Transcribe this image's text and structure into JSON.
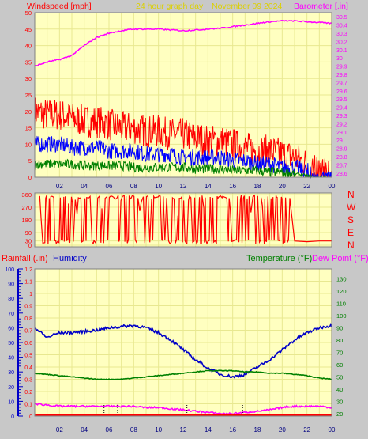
{
  "header": {
    "windspeed_label": "Windspeed [mph]",
    "graph_title": "24 hour graph day",
    "date": "November 09 2024",
    "barometer_label": "Barometer [.in]"
  },
  "middle": {
    "compass": [
      "N",
      "W",
      "S",
      "E",
      "N"
    ]
  },
  "bottom_header": {
    "rainfall_label": "Rainfall (.in)",
    "humidity_label": "Humidity",
    "temperature_label": "Temperature (°F)",
    "dewpoint_label": "Dew Point (°F)"
  },
  "colors": {
    "plot_bg": "#ffffc0",
    "grid": "#e8e890",
    "wind_gust": "#ff0000",
    "wind_avg": "#0000ff",
    "wind_low": "#008000",
    "barometer": "#ff00ff",
    "direction": "#ff0000",
    "humidity": "#0000c8",
    "temperature": "#008000",
    "dewpoint": "#ff00ff",
    "rainfall": "#0000ff"
  },
  "chart_data": [
    {
      "type": "line",
      "name": "wind-barometer",
      "x_ticks": [
        "02",
        "04",
        "06",
        "08",
        "10",
        "12",
        "14",
        "16",
        "18",
        "20",
        "22",
        "00"
      ],
      "y_left_ticks": [
        "0",
        "5",
        "10",
        "15",
        "20",
        "25",
        "30",
        "35",
        "40",
        "45",
        "50"
      ],
      "y_left_lim": [
        0,
        50
      ],
      "y_right_ticks": [
        "28.6",
        "28.7",
        "28.8",
        "28.9",
        "29",
        "29.1",
        "29.2",
        "29.3",
        "29.4",
        "29.5",
        "29.6",
        "29.7",
        "29.8",
        "29.9",
        "30",
        "30.1",
        "30.2",
        "30.3",
        "30.4",
        "30.5"
      ],
      "y_right_lim": [
        28.55,
        30.55
      ],
      "hours": [
        0,
        1,
        2,
        3,
        4,
        5,
        6,
        7,
        8,
        9,
        10,
        11,
        12,
        13,
        14,
        15,
        16,
        17,
        18,
        19,
        20,
        21,
        22,
        23,
        24
      ],
      "series": [
        {
          "values": [
            20,
            19,
            19,
            18,
            17,
            17,
            16,
            15,
            15,
            14,
            14,
            13,
            13,
            12,
            11,
            11,
            10,
            9,
            8,
            8,
            7,
            6,
            4,
            2,
            2
          ],
          "axis": "left"
        },
        {
          "values": [
            10,
            10,
            10,
            9,
            9,
            9,
            8,
            8,
            8,
            7,
            7,
            7,
            6,
            6,
            6,
            6,
            5,
            5,
            4,
            4,
            3,
            3,
            2,
            1,
            1
          ],
          "axis": "left"
        },
        {
          "values": [
            4,
            4,
            4,
            4,
            3.5,
            3.5,
            3.5,
            3.5,
            3,
            3,
            3,
            3,
            3,
            2.5,
            2.5,
            2.5,
            2,
            2,
            2,
            1.5,
            1.5,
            1,
            0.5,
            0,
            0
          ],
          "axis": "left"
        },
        {
          "values": [
            29.9,
            29.95,
            29.98,
            30.03,
            30.15,
            30.25,
            30.3,
            30.33,
            30.35,
            30.35,
            30.35,
            30.34,
            30.33,
            30.34,
            30.35,
            30.36,
            30.38,
            30.4,
            30.42,
            30.44,
            30.45,
            30.45,
            30.44,
            30.43,
            30.42
          ],
          "axis": "right"
        }
      ]
    },
    {
      "type": "line",
      "name": "wind-direction",
      "y_ticks": [
        "0",
        "30",
        "90",
        "180",
        "270",
        "360"
      ],
      "y_lim": [
        0,
        360
      ],
      "values": [
        {
          "hour": 0.5,
          "deg": 350
        },
        {
          "hour": 20.5,
          "deg": 350
        },
        {
          "hour": 21.0,
          "deg": 30
        },
        {
          "hour": 22.0,
          "deg": 25
        },
        {
          "hour": 23.0,
          "deg": 30
        },
        {
          "hour": 24.0,
          "deg": 30
        }
      ]
    },
    {
      "type": "line",
      "name": "temp-humidity",
      "x_ticks": [
        "02",
        "04",
        "06",
        "08",
        "10",
        "12",
        "14",
        "16",
        "18",
        "20",
        "22",
        "00"
      ],
      "y_far_left_ticks": [
        "0",
        "10",
        "20",
        "30",
        "40",
        "50",
        "60",
        "70",
        "80",
        "90",
        "100"
      ],
      "y_left_ticks": [
        "0",
        "0.1",
        "0.2",
        "0.3",
        "0.4",
        "0.5",
        "0.6",
        "0.7",
        "0.8",
        "0.9",
        "1",
        "1.1",
        "1.2"
      ],
      "y_left_lim": [
        0,
        1.2
      ],
      "y_right_ticks": [
        "20",
        "30",
        "40",
        "50",
        "60",
        "70",
        "80",
        "90",
        "100",
        "110",
        "120",
        "130"
      ],
      "y_right_lim": [
        18,
        138
      ],
      "hours": [
        0,
        1,
        2,
        3,
        4,
        5,
        6,
        7,
        8,
        9,
        10,
        11,
        12,
        13,
        14,
        15,
        16,
        17,
        18,
        19,
        20,
        21,
        22,
        23,
        24
      ],
      "series": [
        {
          "values": [
            90,
            82,
            86,
            86,
            87,
            88,
            90,
            91,
            92,
            90,
            86,
            80,
            72,
            64,
            57,
            52,
            50,
            52,
            58,
            64,
            72,
            80,
            86,
            90,
            92
          ],
          "axis": "right"
        },
        {
          "values": [
            53,
            52,
            51,
            50,
            49,
            48,
            48,
            48,
            49,
            50,
            51,
            52,
            53,
            54,
            55,
            55,
            55,
            54,
            54,
            53,
            53,
            52,
            51,
            49,
            48
          ],
          "axis": "right"
        },
        {
          "values": [
            28,
            27,
            26,
            26,
            26,
            26,
            26,
            26,
            26,
            25,
            25,
            24,
            23,
            22,
            21,
            20,
            20,
            21,
            22,
            23,
            25,
            26,
            26,
            26,
            25
          ],
          "axis": "right"
        }
      ],
      "rain_marks_hours": [
        5.6,
        6.7,
        12.3,
        16.8
      ]
    }
  ]
}
